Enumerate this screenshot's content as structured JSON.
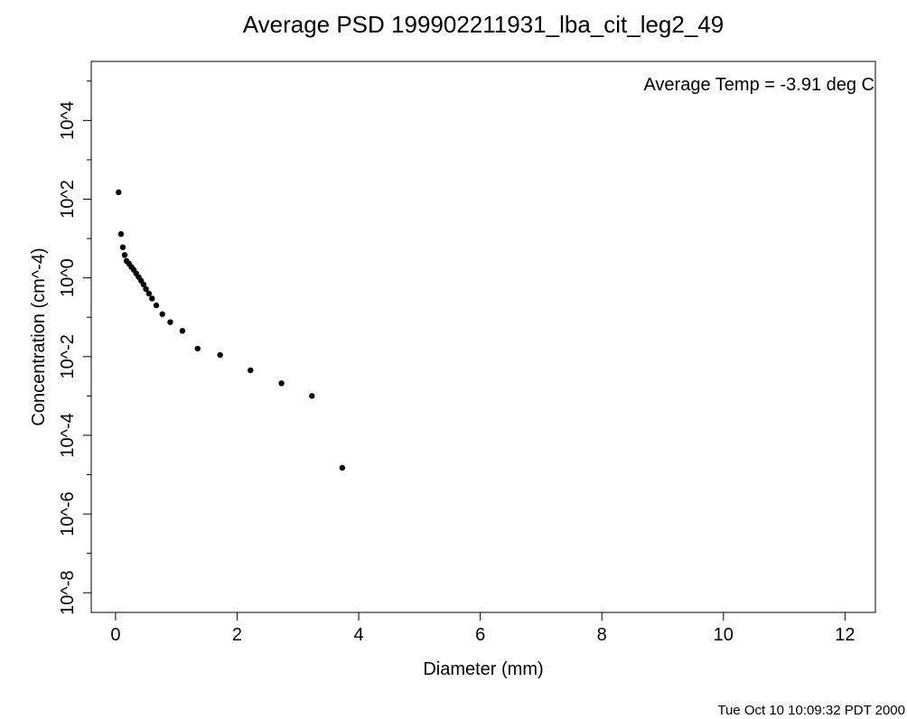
{
  "chart_data": {
    "type": "scatter",
    "title": "Average PSD 199902211931_lba_cit_leg2_49",
    "xlabel": "Diameter (mm)",
    "ylabel": "Concentration (cm^-4)",
    "y_scale": "log",
    "xlim": [
      -0.4,
      12.5
    ],
    "ylim_log10": [
      -8.5,
      5.5
    ],
    "x_ticks": [
      0,
      2,
      4,
      6,
      8,
      10,
      12
    ],
    "x_tick_labels": [
      "0",
      "2",
      "4",
      "6",
      "8",
      "10",
      "12"
    ],
    "y_major_ticks_log10": [
      -8,
      -6,
      -4,
      -2,
      0,
      2,
      4
    ],
    "y_tick_labels": [
      "10^-8",
      "10^-6",
      "10^-4",
      "10^-2",
      "10^0",
      "10^2",
      "10^4"
    ],
    "y_minor_ticks_log10": [
      -7,
      -5,
      -3,
      -1,
      1,
      3,
      5
    ],
    "grid": false,
    "legend": "none",
    "annotation": "Average Temp = -3.91 deg C",
    "point_color": "#000000",
    "series": [
      {
        "x": [
          0.05,
          0.09,
          0.12,
          0.15,
          0.18,
          0.22,
          0.26,
          0.3,
          0.34,
          0.38,
          0.42,
          0.46,
          0.5,
          0.55,
          0.6,
          0.67,
          0.77,
          0.9,
          1.1,
          1.35,
          1.72,
          2.22,
          2.73,
          3.23,
          3.73
        ],
        "y": [
          150,
          13,
          6.0,
          3.8,
          2.7,
          2.3,
          1.9,
          1.6,
          1.3,
          1.05,
          0.85,
          0.68,
          0.52,
          0.4,
          0.3,
          0.2,
          0.12,
          0.075,
          0.045,
          0.016,
          0.011,
          0.0045,
          0.0021,
          0.001,
          1.5e-05
        ]
      }
    ]
  },
  "footer": {
    "timestamp": "Tue Oct 10 10:09:32 PDT 2000"
  }
}
